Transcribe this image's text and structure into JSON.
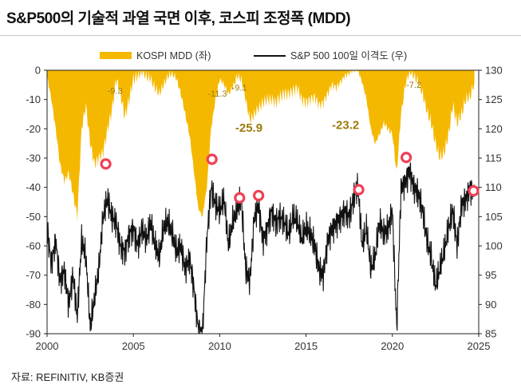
{
  "title": "S&P500의 기술적 과열 국면 이후, 코스피 조정폭 (MDD)",
  "source": "자료: REFINITIV, KB증권",
  "colors": {
    "mdd_fill": "#f5b800",
    "sp500_line": "#111111",
    "marker": "#ef4055",
    "annotation": "#9a7c0c"
  },
  "chart_data": {
    "type": "area",
    "legend": [
      {
        "label": "KOSPI MDD (좌)",
        "style": "area",
        "color": "#f5b800"
      },
      {
        "label": "S&P 500 100일 이격도 (우)",
        "style": "line",
        "color": "#111111"
      }
    ],
    "legend_position": "top",
    "x_range": [
      2000,
      2025
    ],
    "x_ticks": [
      "2000",
      "2005",
      "2010",
      "2015",
      "2020",
      "2025"
    ],
    "y_left_range": [
      -90,
      0
    ],
    "y_left_ticks": [
      "0",
      "-10",
      "-20",
      "-30",
      "-40",
      "-50",
      "-60",
      "-70",
      "-80",
      "-90"
    ],
    "y_right_range": [
      85,
      130
    ],
    "y_right_ticks": [
      "130",
      "125",
      "120",
      "115",
      "110",
      "105",
      "100",
      "95",
      "90",
      "85"
    ],
    "series": [
      {
        "name": "KOSPI MDD (좌)",
        "axis": "left",
        "kind": "area",
        "x": [
          2000.0,
          2000.25,
          2000.5,
          2000.75,
          2001.0,
          2001.25,
          2001.5,
          2001.75,
          2002.0,
          2002.25,
          2002.5,
          2002.75,
          2003.0,
          2003.25,
          2003.5,
          2003.75,
          2004.0,
          2004.25,
          2004.5,
          2004.75,
          2005.0,
          2005.25,
          2005.5,
          2005.75,
          2006.0,
          2006.25,
          2006.5,
          2006.75,
          2007.0,
          2007.25,
          2007.5,
          2007.75,
          2008.0,
          2008.25,
          2008.5,
          2008.75,
          2009.0,
          2009.25,
          2009.5,
          2009.75,
          2010.0,
          2010.25,
          2010.5,
          2010.75,
          2011.0,
          2011.25,
          2011.5,
          2011.75,
          2012.0,
          2012.25,
          2012.5,
          2012.75,
          2013.0,
          2013.25,
          2013.5,
          2013.75,
          2014.0,
          2014.25,
          2014.5,
          2014.75,
          2015.0,
          2015.25,
          2015.5,
          2015.75,
          2016.0,
          2016.25,
          2016.5,
          2016.75,
          2017.0,
          2017.25,
          2017.5,
          2017.75,
          2018.0,
          2018.25,
          2018.5,
          2018.75,
          2019.0,
          2019.25,
          2019.5,
          2019.75,
          2020.0,
          2020.25,
          2020.5,
          2020.75,
          2021.0,
          2021.25,
          2021.5,
          2021.75,
          2022.0,
          2022.25,
          2022.5,
          2022.75,
          2023.0,
          2023.25,
          2023.5,
          2023.75,
          2024.0,
          2024.25,
          2024.5,
          2024.75
        ],
        "values": [
          -2,
          -10,
          -20,
          -32,
          -38,
          -35,
          -42,
          -50,
          -20,
          -12,
          -25,
          -32,
          -30,
          -28,
          -20,
          -14,
          -3,
          -8,
          -16,
          -10,
          -3,
          -2,
          0,
          -2,
          -3,
          -6,
          -8,
          -5,
          -2,
          -1,
          -3,
          -8,
          -15,
          -22,
          -34,
          -47,
          -50,
          -40,
          -20,
          -10,
          -3,
          -5,
          -8,
          -6,
          -2,
          -3,
          -10,
          -17,
          -15,
          -13,
          -11,
          -10,
          -10,
          -11,
          -9,
          -8,
          -8,
          -7,
          -6,
          -10,
          -11,
          -10,
          -9,
          -12,
          -11,
          -8,
          -5,
          -6,
          -4,
          -2,
          -1,
          0,
          0,
          -4,
          -10,
          -20,
          -25,
          -22,
          -18,
          -20,
          -22,
          -35,
          -15,
          -5,
          0,
          -2,
          -4,
          -8,
          -14,
          -18,
          -25,
          -30,
          -28,
          -22,
          -12,
          -18,
          -15,
          -10,
          -9,
          -4
        ]
      },
      {
        "name": "S&P 500 100일 이격도 (우)",
        "axis": "right",
        "kind": "line",
        "x": [
          2000.0,
          2000.25,
          2000.5,
          2000.75,
          2001.0,
          2001.25,
          2001.5,
          2001.75,
          2002.0,
          2002.25,
          2002.5,
          2002.75,
          2003.0,
          2003.25,
          2003.5,
          2003.75,
          2004.0,
          2004.25,
          2004.5,
          2004.75,
          2005.0,
          2005.25,
          2005.5,
          2005.75,
          2006.0,
          2006.25,
          2006.5,
          2006.75,
          2007.0,
          2007.25,
          2007.5,
          2007.75,
          2008.0,
          2008.25,
          2008.5,
          2008.75,
          2009.0,
          2009.25,
          2009.5,
          2009.75,
          2010.0,
          2010.25,
          2010.5,
          2010.75,
          2011.0,
          2011.25,
          2011.5,
          2011.75,
          2012.0,
          2012.25,
          2012.5,
          2012.75,
          2013.0,
          2013.25,
          2013.5,
          2013.75,
          2014.0,
          2014.25,
          2014.5,
          2014.75,
          2015.0,
          2015.25,
          2015.5,
          2015.75,
          2016.0,
          2016.25,
          2016.5,
          2016.75,
          2017.0,
          2017.25,
          2017.5,
          2017.75,
          2018.0,
          2018.25,
          2018.5,
          2018.75,
          2019.0,
          2019.25,
          2019.5,
          2019.75,
          2020.0,
          2020.25,
          2020.5,
          2020.75,
          2021.0,
          2021.25,
          2021.5,
          2021.75,
          2022.0,
          2022.25,
          2022.5,
          2022.75,
          2023.0,
          2023.25,
          2023.5,
          2023.75,
          2024.0,
          2024.25,
          2024.5,
          2024.75
        ],
        "values": [
          103,
          97,
          101,
          94,
          96,
          90,
          95,
          88,
          101,
          98,
          86,
          91,
          96,
          105,
          108,
          105,
          104,
          100,
          99,
          102,
          103,
          100,
          103,
          101,
          104,
          100,
          98,
          103,
          104,
          102,
          99,
          100,
          96,
          98,
          93,
          86,
          85,
          101,
          110,
          107,
          106,
          108,
          100,
          104,
          106,
          108,
          96,
          94,
          105,
          107,
          101,
          103,
          106,
          104,
          105,
          104,
          102,
          105,
          104,
          101,
          103,
          102,
          100,
          96,
          95,
          101,
          103,
          104,
          105,
          106,
          105,
          108,
          110,
          100,
          103,
          96,
          98,
          104,
          102,
          103,
          106,
          86,
          110,
          111,
          113,
          110,
          109,
          106,
          101,
          98,
          93,
          96,
          99,
          103,
          106,
          100,
          107,
          108,
          110,
          109
        ]
      }
    ],
    "markers": [
      {
        "x": 2003.4,
        "y_right": 114
      },
      {
        "x": 2009.55,
        "y_right": 114.8
      },
      {
        "x": 2011.15,
        "y_right": 108.2
      },
      {
        "x": 2012.25,
        "y_right": 108.6
      },
      {
        "x": 2018.05,
        "y_right": 109.6
      },
      {
        "x": 2020.8,
        "y_right": 115.1
      },
      {
        "x": 2024.7,
        "y_right": 109.4
      }
    ],
    "annotations": [
      {
        "text": "-9.3",
        "x": 2003.5,
        "y_left": -8,
        "size": "small"
      },
      {
        "text": "-11.3",
        "x": 2009.3,
        "y_left": -9,
        "size": "small"
      },
      {
        "text": "-9.1",
        "x": 2010.7,
        "y_left": -7,
        "size": "small"
      },
      {
        "text": "-25.9",
        "x": 2010.9,
        "y_left": -21,
        "size": "big"
      },
      {
        "text": "-23.2",
        "x": 2016.5,
        "y_left": -20,
        "size": "big"
      },
      {
        "text": "-7.2",
        "x": 2020.8,
        "y_left": -6,
        "size": "small"
      }
    ]
  }
}
